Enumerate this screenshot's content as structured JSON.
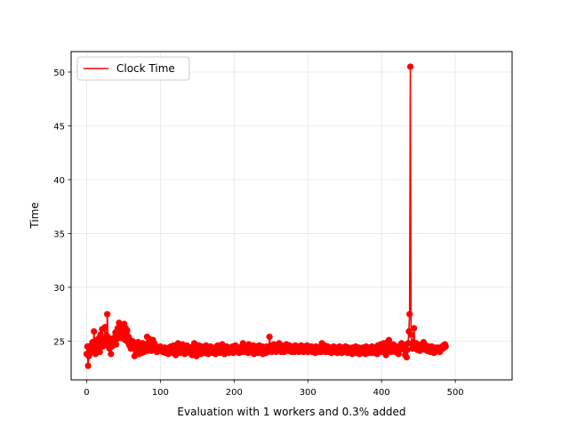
{
  "chart_data": {
    "type": "line",
    "title": "",
    "xlabel": "Evaluation with 1 workers and 0.3% added",
    "ylabel": "Time",
    "xlim": [
      -21,
      577
    ],
    "ylim": [
      21.4,
      51.9
    ],
    "x_ticks": [
      0,
      100,
      200,
      300,
      400,
      500
    ],
    "y_ticks": [
      25,
      30,
      35,
      40,
      45,
      50
    ],
    "grid": true,
    "legend_position": "upper-left",
    "series": [
      {
        "name": "Clock Time",
        "color": "#ff0000",
        "marker": "circle",
        "x_start": 0,
        "x_step": 1,
        "values": [
          23.8,
          24.5,
          22.7,
          23.6,
          24.3,
          23.9,
          24.6,
          24.1,
          24.9,
          24.4,
          25.9,
          24.3,
          23.8,
          24.6,
          25.1,
          24.2,
          24.7,
          25.3,
          24.0,
          25.6,
          24.8,
          26.1,
          24.5,
          25.2,
          24.7,
          26.3,
          25.0,
          24.6,
          27.5,
          25.4,
          24.8,
          24.3,
          24.9,
          23.8,
          24.5,
          25.1,
          24.6,
          25.3,
          24.9,
          25.8,
          24.7,
          25.2,
          26.2,
          25.6,
          26.7,
          25.9,
          26.5,
          25.3,
          26.4,
          26.0,
          25.5,
          26.6,
          25.1,
          26.2,
          25.7,
          26.0,
          24.9,
          25.4,
          24.6,
          25.1,
          24.3,
          24.8,
          25.0,
          24.4,
          24.9,
          23.6,
          24.5,
          24.0,
          24.7,
          24.2,
          24.9,
          23.8,
          24.4,
          24.1,
          24.6,
          23.9,
          24.8,
          24.3,
          24.0,
          24.5,
          24.2,
          24.7,
          25.4,
          24.1,
          24.8,
          25.2,
          24.4,
          24.9,
          24.1,
          24.6,
          25.1,
          24.3,
          24.8,
          24.2,
          24.5,
          24.0,
          24.4,
          24.1,
          24.3,
          24.2,
          24.5,
          24.1,
          24.4,
          24.0,
          24.3,
          24.1,
          24.4,
          23.9,
          24.2,
          24.0,
          24.3,
          23.8,
          24.4,
          24.1,
          24.5,
          24.0,
          24.3,
          23.9,
          24.6,
          24.2,
          24.4,
          23.7,
          24.3,
          24.0,
          24.8,
          24.2,
          24.5,
          23.9,
          24.4,
          24.1,
          24.7,
          24.0,
          24.3,
          23.8,
          24.5,
          24.1,
          24.6,
          24.0,
          24.2,
          23.9,
          24.4,
          24.1,
          24.3,
          23.7,
          24.5,
          24.2,
          24.8,
          24.0,
          24.4,
          23.6,
          24.3,
          24.1,
          24.6,
          23.9,
          24.2,
          23.8,
          24.5,
          24.0,
          24.4,
          24.1,
          24.3,
          23.9,
          24.6,
          24.2,
          24.4,
          23.8,
          24.3,
          24.0,
          24.5,
          24.1,
          24.4,
          23.9,
          24.2,
          24.0,
          24.3,
          23.8,
          24.5,
          24.1,
          24.6,
          24.0,
          24.2,
          23.9,
          24.4,
          24.1,
          24.7,
          24.0,
          24.3,
          23.8,
          24.4,
          24.2,
          24.5,
          24.0,
          24.3,
          23.9,
          24.4,
          24.1,
          24.2,
          24.0,
          24.5,
          23.9,
          24.3,
          24.1,
          24.6,
          24.2,
          24.4,
          24.0,
          24.3,
          23.9,
          24.4,
          24.1,
          24.5,
          24.0,
          24.8,
          24.2,
          24.4,
          24.0,
          24.6,
          24.1,
          24.3,
          23.9,
          24.7,
          24.2,
          24.5,
          24.0,
          24.4,
          24.1,
          24.6,
          23.8,
          24.3,
          24.0,
          24.5,
          24.2,
          24.4,
          23.9,
          24.6,
          24.1,
          24.3,
          24.0,
          24.5,
          23.8,
          24.4,
          24.1,
          24.2,
          23.9,
          24.5,
          24.0,
          24.3,
          24.1,
          25.4,
          24.3,
          24.6,
          24.0,
          24.4,
          24.2,
          24.7,
          24.1,
          24.5,
          24.0,
          24.3,
          24.6,
          24.2,
          24.8,
          24.1,
          24.4,
          24.0,
          24.6,
          24.2,
          24.3,
          24.0,
          24.5,
          24.1,
          24.7,
          24.3,
          24.4,
          24.1,
          24.6,
          24.2,
          24.4,
          24.0,
          24.5,
          24.2,
          24.3,
          24.0,
          24.6,
          24.1,
          24.4,
          24.2,
          24.5,
          24.0,
          24.3,
          24.1,
          24.6,
          24.2,
          24.4,
          24.0,
          24.5,
          24.1,
          24.3,
          24.2,
          24.6,
          24.0,
          24.4,
          24.1,
          24.3,
          24.2,
          24.5,
          24.0,
          24.4,
          24.1,
          24.3,
          23.9,
          24.5,
          24.1,
          24.3,
          24.0,
          24.4,
          24.2,
          24.3,
          24.0,
          24.8,
          24.1,
          24.4,
          24.2,
          24.6,
          24.0,
          24.3,
          24.1,
          24.5,
          24.0,
          24.2,
          24.1,
          24.4,
          23.9,
          24.3,
          24.1,
          24.5,
          24.0,
          24.2,
          24.1,
          24.4,
          23.9,
          24.3,
          24.0,
          24.5,
          24.1,
          24.2,
          23.9,
          24.4,
          24.0,
          24.3,
          24.1,
          24.5,
          24.0,
          24.2,
          23.9,
          24.4,
          24.1,
          24.3,
          24.0,
          24.2,
          23.8,
          24.4,
          24.0,
          24.3,
          24.1,
          24.5,
          23.9,
          24.2,
          24.0,
          24.4,
          23.8,
          24.3,
          24.1,
          24.2,
          23.9,
          24.4,
          24.0,
          24.3,
          23.8,
          24.5,
          24.1,
          24.2,
          23.9,
          24.4,
          24.0,
          24.3,
          23.9,
          24.5,
          24.1,
          24.4,
          23.9,
          24.2,
          24.0,
          24.4,
          23.8,
          24.6,
          24.1,
          24.3,
          24.0,
          24.7,
          24.3,
          24.5,
          24.0,
          24.8,
          24.4,
          24.2,
          23.7,
          24.3,
          24.9,
          24.2,
          25.1,
          24.4,
          24.6,
          24.0,
          24.5,
          24.2,
          24.7,
          24.1,
          24.4,
          24.0,
          24.3,
          24.1,
          24.5,
          23.8,
          24.4,
          24.2,
          24.6,
          24.8,
          24.3,
          24.7,
          24.5,
          24.2,
          23.7,
          24.1,
          23.5,
          24.2,
          24.8,
          25.9,
          27.5,
          50.5,
          25.6,
          24.7,
          24.3,
          24.9,
          26.2,
          24.6,
          24.4,
          24.8,
          24.2,
          24.6,
          24.3,
          24.5,
          24.1,
          24.4,
          24.7,
          24.3,
          24.5,
          24.9,
          24.4,
          24.2,
          24.6,
          24.3,
          24.1,
          24.5,
          24.2,
          24.4,
          24.0,
          24.3,
          24.5,
          24.1,
          24.2,
          23.9,
          24.4,
          24.0,
          24.3,
          24.2,
          24.4,
          24.1,
          24.3,
          24.0,
          24.4,
          24.2,
          24.5,
          24.3,
          24.6,
          24.4,
          24.7,
          24.5
        ]
      }
    ]
  }
}
